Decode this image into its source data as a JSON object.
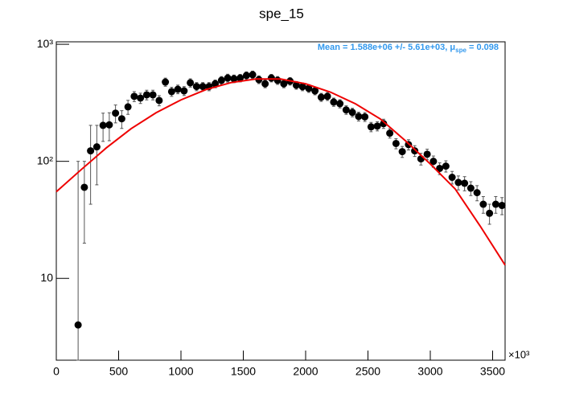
{
  "chart_data": {
    "type": "scatter",
    "title": "spe_15",
    "annotation": {
      "parts": [
        "Mean = 1.588e+06 +/- 5.61e+03, μ",
        "spe",
        " = 0.098"
      ],
      "color": "#3399ee"
    },
    "x_multiplier": "×10³",
    "log_y": true,
    "xlim": [
      0,
      3600
    ],
    "ylim": [
      2,
      1050
    ],
    "xticks": [
      0,
      500,
      1000,
      1500,
      2000,
      2500,
      3000,
      3500
    ],
    "yticks": [
      {
        "value": 10,
        "label": "10"
      },
      {
        "value": 100,
        "label": "10²"
      },
      {
        "value": 1000,
        "label": "10³"
      }
    ],
    "series": [
      {
        "type": "scatter",
        "color": "#000000",
        "x": [
          175,
          225,
          275,
          325,
          375,
          425,
          475,
          525,
          575,
          625,
          675,
          725,
          775,
          825,
          875,
          925,
          975,
          1025,
          1075,
          1125,
          1175,
          1225,
          1275,
          1325,
          1375,
          1425,
          1475,
          1525,
          1575,
          1625,
          1675,
          1725,
          1775,
          1825,
          1875,
          1925,
          1975,
          2025,
          2075,
          2125,
          2175,
          2225,
          2275,
          2325,
          2375,
          2425,
          2475,
          2525,
          2575,
          2625,
          2675,
          2725,
          2775,
          2825,
          2875,
          2925,
          2975,
          3025,
          3075,
          3125,
          3175,
          3225,
          3275,
          3325,
          3375,
          3425,
          3475,
          3525,
          3575
        ],
        "values": [
          4,
          60,
          123,
          133,
          203,
          205,
          258,
          231,
          292,
          359,
          347,
          370,
          370,
          331,
          476,
          394,
          413,
          400,
          469,
          436,
          436,
          436,
          460,
          492,
          515,
          508,
          515,
          541,
          550,
          499,
          460,
          515,
          492,
          460,
          484,
          447,
          434,
          420,
          400,
          353,
          359,
          321,
          311,
          275,
          262,
          242,
          240,
          197,
          200,
          210,
          174,
          142,
          121,
          139,
          123,
          105,
          115,
          100,
          87,
          91,
          73,
          66,
          65,
          59,
          54,
          43,
          36,
          43,
          42
        ],
        "errors": [
          96,
          40,
          80,
          70,
          55,
          55,
          45,
          40,
          40,
          35,
          35,
          35,
          35,
          33,
          38,
          35,
          35,
          35,
          38,
          35,
          35,
          35,
          35,
          38,
          40,
          38,
          38,
          40,
          40,
          38,
          35,
          38,
          38,
          35,
          36,
          34,
          33,
          32,
          30,
          28,
          28,
          26,
          25,
          23,
          22,
          21,
          21,
          18,
          18,
          19,
          16,
          14,
          13,
          14,
          13,
          12,
          12,
          11,
          10,
          10,
          9,
          9,
          9,
          8,
          8,
          7,
          7,
          7,
          7
        ]
      },
      {
        "type": "line",
        "color": "#ee0000",
        "x": [
          0,
          200,
          400,
          600,
          800,
          1000,
          1200,
          1400,
          1600,
          1800,
          2000,
          2200,
          2400,
          2600,
          2800,
          3000,
          3200,
          3400,
          3600
        ],
        "values": [
          55,
          85,
          130,
          190,
          260,
          335,
          410,
          470,
          505,
          505,
          460,
          390,
          310,
          230,
          150,
          95,
          58,
          28,
          13
        ]
      }
    ]
  }
}
